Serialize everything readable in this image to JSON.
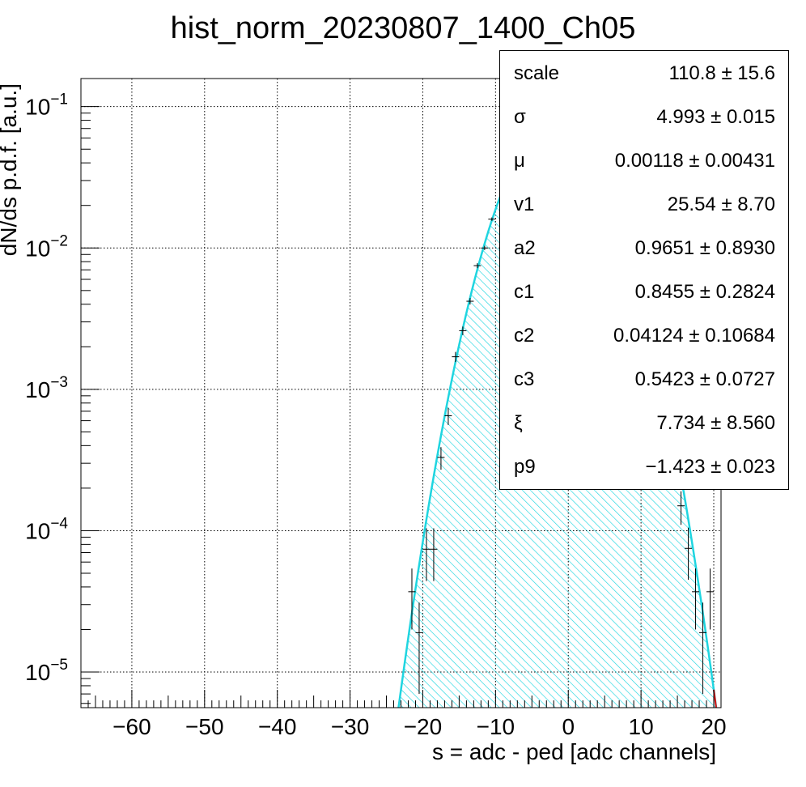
{
  "chart_data": {
    "type": "scatter",
    "title": "hist_norm_20230807_1400_Ch05",
    "xlabel": "s = adc - ped [adc channels]",
    "ylabel": "dN/ds p.d.f. [a.u.]",
    "xlim": [
      -67,
      21
    ],
    "ylim": [
      5.6e-06,
      0.158
    ],
    "yscale": "log",
    "grid": true,
    "x_ticks": [
      -60,
      -50,
      -40,
      -30,
      -20,
      -10,
      0,
      10,
      20
    ],
    "y_ticks": [
      {
        "value": 0.1,
        "base": "10",
        "exp": "−1"
      },
      {
        "value": 0.01,
        "base": "10",
        "exp": "−2"
      },
      {
        "value": 0.001,
        "base": "10",
        "exp": "−3"
      },
      {
        "value": 0.0001,
        "base": "10",
        "exp": "−4"
      },
      {
        "value": 1e-05,
        "base": "10",
        "exp": "−5"
      }
    ],
    "series": [
      {
        "role": "histogram points with error bars",
        "color": "#000000",
        "x": [
          -21.5,
          -20.5,
          -19.5,
          -18.5,
          -17.5,
          -16.5,
          -15.5,
          -14.5,
          -13.5,
          -12.5,
          -11.5,
          -10.5,
          15.5,
          16.5,
          17.5,
          18.5,
          19.5
        ],
        "y": [
          3.7e-05,
          1.9e-05,
          7.4e-05,
          7.4e-05,
          0.00033,
          0.00065,
          0.0017,
          0.0026,
          0.0042,
          0.0075,
          0.01,
          0.016,
          0.00015,
          7.5e-05,
          3.7e-05,
          1.9e-05,
          3.7e-05
        ],
        "yerr": [
          1.7e-05,
          1.2e-05,
          3e-05,
          3e-05,
          6e-05,
          9e-05,
          0.00014,
          0.00018,
          0.00022,
          0.0003,
          0.00035,
          0.00045,
          4e-05,
          3e-05,
          1.7e-05,
          1.2e-05,
          1.7e-05
        ]
      },
      {
        "role": "fit function (cyan, hatched fill)",
        "color": "#1fd5e0",
        "model": "gaussian",
        "scale": 0.0798,
        "mu": -1.5,
        "sigma": 4.993,
        "x_range": [
          -24,
          20.5
        ]
      },
      {
        "role": "fit tail",
        "color": "#e01010",
        "x_range": [
          20.0,
          21.0
        ]
      }
    ],
    "stats_box": [
      {
        "name": "scale",
        "value": "110.8 ± 15.6"
      },
      {
        "name": "σ",
        "value": "4.993 ± 0.015"
      },
      {
        "name": "μ",
        "value": "0.00118 ± 0.00431"
      },
      {
        "name": "v1",
        "value": "25.54 ± 8.70"
      },
      {
        "name": "a2",
        "value": "0.9651 ± 0.8930"
      },
      {
        "name": "c1",
        "value": "0.8455 ± 0.2824"
      },
      {
        "name": "c2",
        "value": "0.04124 ± 0.10684"
      },
      {
        "name": "c3",
        "value": "0.5423 ± 0.0727"
      },
      {
        "name": "ξ",
        "value": "7.734 ± 8.560"
      },
      {
        "name": "p9",
        "value": "−1.423 ± 0.023"
      }
    ]
  }
}
